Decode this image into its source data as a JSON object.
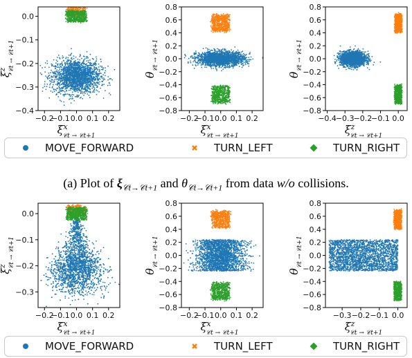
{
  "colors": {
    "MOVE_FORWARD": "#1f77b4",
    "TURN_LEFT": "#ff7f0e",
    "TURN_RIGHT": "#2ca02c"
  },
  "legend": {
    "items": [
      {
        "key": "MOVE_FORWARD",
        "label": "MOVE_FORWARD",
        "marker": "circle"
      },
      {
        "key": "TURN_LEFT",
        "label": "TURN_LEFT",
        "marker": "x"
      },
      {
        "key": "TURN_RIGHT",
        "label": "TURN_RIGHT",
        "marker": "diamond"
      }
    ]
  },
  "caption": {
    "prefix": "(a) Plot of ",
    "xi_symbol": "ξ",
    "sub1": "𝒞",
    "sub_t": "t",
    "arrow": "→",
    "sub2": "𝒞",
    "sub_t1": "t+1",
    "middle": " and ",
    "theta_symbol": "θ",
    "after": " from data ",
    "italic": "w/o",
    "suffix": " collisions."
  },
  "axis_labels": {
    "xi_x": "ξ",
    "xi_x_sup": "x",
    "xi_z": "ξ",
    "xi_z_sup": "z",
    "theta": "θ",
    "sub": "𝒞t → 𝒞t+1"
  },
  "chart_data": [
    {
      "type": "scatter",
      "row": "a",
      "col": 1,
      "xlabel": "ξx",
      "ylabel": "ξz",
      "xlim": [
        -0.24,
        0.27
      ],
      "ylim": [
        -0.4,
        0.04
      ],
      "xticks": [
        -0.2,
        -0.1,
        0.0,
        0.1,
        0.2
      ],
      "yticks": [
        -0.4,
        -0.3,
        -0.2,
        -0.1,
        0.0
      ],
      "series": [
        {
          "key": "MOVE_FORWARD",
          "clusters": [
            {
              "shape": "gauss",
              "cx": 0.0,
              "cy": -0.255,
              "sx": 0.075,
              "sy": 0.036,
              "n": 2000
            }
          ]
        },
        {
          "key": "TURN_LEFT",
          "clusters": [
            {
              "shape": "rect",
              "cx": 0.0,
              "cy": 0.02,
              "hw": 0.055,
              "hh": 0.022,
              "n": 260
            }
          ]
        },
        {
          "key": "TURN_RIGHT",
          "clusters": [
            {
              "shape": "rect",
              "cx": 0.0,
              "cy": 0.0,
              "hw": 0.06,
              "hh": 0.024,
              "n": 600
            }
          ]
        }
      ]
    },
    {
      "type": "scatter",
      "row": "a",
      "col": 2,
      "xlabel": "ξx",
      "ylabel": "θ",
      "xlim": [
        -0.25,
        0.27
      ],
      "ylim": [
        -0.8,
        0.8
      ],
      "xticks": [
        -0.2,
        -0.1,
        0.0,
        0.1,
        0.2
      ],
      "yticks": [
        -0.8,
        -0.6,
        -0.4,
        -0.2,
        0.0,
        0.2,
        0.4,
        0.6,
        0.8
      ],
      "series": [
        {
          "key": "MOVE_FORWARD",
          "clusters": [
            {
              "shape": "gauss",
              "cx": 0.0,
              "cy": 0.0,
              "sx": 0.075,
              "sy": 0.055,
              "n": 2000
            }
          ]
        },
        {
          "key": "TURN_LEFT",
          "clusters": [
            {
              "shape": "rect",
              "cx": 0.0,
              "cy": 0.55,
              "hw": 0.055,
              "hh": 0.13,
              "n": 600
            }
          ]
        },
        {
          "key": "TURN_RIGHT",
          "clusters": [
            {
              "shape": "rect",
              "cx": 0.0,
              "cy": -0.55,
              "hw": 0.055,
              "hh": 0.13,
              "n": 600
            }
          ]
        }
      ]
    },
    {
      "type": "scatter",
      "row": "a",
      "col": 3,
      "xlabel": "ξz",
      "ylabel": "θ",
      "xlim": [
        -0.41,
        0.05
      ],
      "ylim": [
        -0.8,
        0.8
      ],
      "xticks": [
        -0.4,
        -0.3,
        -0.2,
        -0.1,
        0.0
      ],
      "yticks": [
        -0.8,
        -0.6,
        -0.4,
        -0.2,
        0.0,
        0.2,
        0.4,
        0.6,
        0.8
      ],
      "series": [
        {
          "key": "MOVE_FORWARD",
          "clusters": [
            {
              "shape": "gauss",
              "cx": -0.255,
              "cy": 0.0,
              "sx": 0.036,
              "sy": 0.055,
              "n": 2000
            }
          ]
        },
        {
          "key": "TURN_LEFT",
          "clusters": [
            {
              "shape": "rect",
              "cx": 0.0,
              "cy": 0.55,
              "hw": 0.02,
              "hh": 0.14,
              "n": 600
            }
          ]
        },
        {
          "key": "TURN_RIGHT",
          "clusters": [
            {
              "shape": "rect",
              "cx": 0.0,
              "cy": -0.55,
              "hw": 0.02,
              "hh": 0.14,
              "n": 600
            }
          ]
        }
      ]
    },
    {
      "type": "scatter",
      "row": "b",
      "col": 1,
      "xlabel": "ξx",
      "ylabel": "ξz",
      "xlim": [
        -0.24,
        0.27
      ],
      "ylim": [
        -0.36,
        0.04
      ],
      "xticks": [
        -0.2,
        -0.1,
        0.0,
        0.1,
        0.2
      ],
      "yticks": [
        -0.3,
        -0.2,
        -0.1,
        0.0
      ],
      "series": [
        {
          "key": "MOVE_FORWARD",
          "clusters": [
            {
              "shape": "cone",
              "cx": 0.0,
              "cy": -0.22,
              "sx": 0.08,
              "sy": 0.045,
              "top": 0.0,
              "n": 2600
            }
          ]
        },
        {
          "key": "TURN_LEFT",
          "clusters": [
            {
              "shape": "rect",
              "cx": 0.0,
              "cy": 0.01,
              "hw": 0.055,
              "hh": 0.022,
              "n": 300
            }
          ]
        },
        {
          "key": "TURN_RIGHT",
          "clusters": [
            {
              "shape": "rect",
              "cx": 0.0,
              "cy": 0.0,
              "hw": 0.06,
              "hh": 0.024,
              "n": 600
            }
          ]
        }
      ]
    },
    {
      "type": "scatter",
      "row": "b",
      "col": 2,
      "xlabel": "ξx",
      "ylabel": "θ",
      "xlim": [
        -0.25,
        0.27
      ],
      "ylim": [
        -0.8,
        0.8
      ],
      "xticks": [
        -0.2,
        -0.1,
        0.0,
        0.1,
        0.2
      ],
      "yticks": [
        -0.8,
        -0.6,
        -0.4,
        -0.2,
        0.0,
        0.2,
        0.4,
        0.6,
        0.8
      ],
      "series": [
        {
          "key": "MOVE_FORWARD",
          "clusters": [
            {
              "shape": "band",
              "cx": 0.0,
              "cy": 0.0,
              "sx": 0.075,
              "hh": 0.24,
              "n": 2400
            }
          ]
        },
        {
          "key": "TURN_LEFT",
          "clusters": [
            {
              "shape": "rect",
              "cx": 0.0,
              "cy": 0.55,
              "hw": 0.055,
              "hh": 0.13,
              "n": 600
            }
          ]
        },
        {
          "key": "TURN_RIGHT",
          "clusters": [
            {
              "shape": "rect",
              "cx": 0.0,
              "cy": -0.55,
              "hw": 0.055,
              "hh": 0.13,
              "n": 600
            }
          ]
        }
      ]
    },
    {
      "type": "scatter",
      "row": "b",
      "col": 3,
      "xlabel": "ξz",
      "ylabel": "θ",
      "xlim": [
        -0.39,
        0.05
      ],
      "ylim": [
        -0.8,
        0.8
      ],
      "xticks": [
        -0.3,
        -0.2,
        -0.1,
        0.0
      ],
      "yticks": [
        -0.8,
        -0.6,
        -0.4,
        -0.2,
        0.0,
        0.2,
        0.4,
        0.6,
        0.8
      ],
      "series": [
        {
          "key": "MOVE_FORWARD",
          "clusters": [
            {
              "shape": "bandx",
              "x0": -0.37,
              "x1": 0.0,
              "cy": 0.0,
              "hh": 0.24,
              "n": 2400
            }
          ]
        },
        {
          "key": "TURN_LEFT",
          "clusters": [
            {
              "shape": "rect",
              "cx": 0.0,
              "cy": 0.55,
              "hw": 0.02,
              "hh": 0.14,
              "n": 600
            }
          ]
        },
        {
          "key": "TURN_RIGHT",
          "clusters": [
            {
              "shape": "rect",
              "cx": 0.0,
              "cy": -0.55,
              "hw": 0.02,
              "hh": 0.14,
              "n": 600
            }
          ]
        }
      ]
    }
  ]
}
